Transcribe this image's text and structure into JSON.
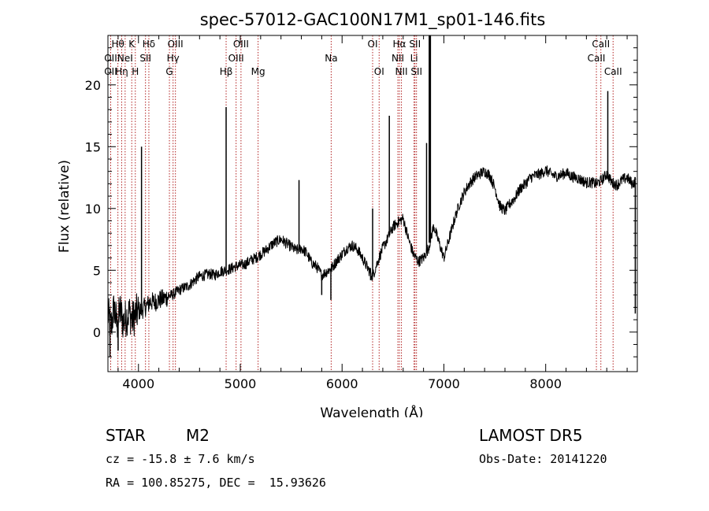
{
  "chart_data": {
    "type": "line",
    "title": "spec-57012-GAC100N17M1_sp01-146.fits",
    "xlabel": "Wavelength (Å)",
    "ylabel": "Flux (relative)",
    "xlim": [
      3700,
      8900
    ],
    "ylim": [
      -3.2,
      24
    ],
    "xticks": [
      4000,
      5000,
      6000,
      7000,
      8000
    ],
    "yticks": [
      0,
      5,
      10,
      15,
      20
    ],
    "grid": false,
    "series": [
      {
        "x": [
          3700,
          3730,
          3760,
          3790,
          3820,
          3850,
          3880,
          3910,
          3940,
          3970,
          4000,
          4030,
          4060,
          4090,
          4120,
          4150,
          4200,
          4250,
          4300,
          4350,
          4400,
          4450,
          4500,
          4550,
          4600,
          4650,
          4700,
          4750,
          4800,
          4850,
          4900,
          4950,
          5000,
          5050,
          5100,
          5150,
          5200,
          5250,
          5300,
          5350,
          5400,
          5450,
          5500,
          5550,
          5600,
          5650,
          5700,
          5750,
          5800,
          5850,
          5900,
          5950,
          6000,
          6050,
          6100,
          6150,
          6200,
          6250,
          6300,
          6350,
          6400,
          6450,
          6500,
          6550,
          6600,
          6650,
          6700,
          6750,
          6800,
          6850,
          6900,
          6950,
          7000,
          7050,
          7100,
          7150,
          7200,
          7250,
          7300,
          7350,
          7400,
          7450,
          7500,
          7550,
          7600,
          7650,
          7700,
          7750,
          7800,
          7850,
          7900,
          7950,
          8000,
          8050,
          8100,
          8150,
          8200,
          8250,
          8300,
          8350,
          8400,
          8450,
          8500,
          8550,
          8600,
          8650,
          8700,
          8750,
          8800,
          8850,
          8880
        ],
        "y": [
          1.5,
          0.3,
          2.0,
          0.5,
          1.8,
          0.8,
          1.2,
          1.6,
          1.0,
          1.4,
          1.7,
          1.8,
          2.0,
          2.2,
          2.5,
          2.4,
          2.6,
          2.7,
          2.9,
          3.1,
          3.4,
          3.6,
          3.8,
          4.2,
          4.5,
          4.6,
          4.7,
          4.6,
          4.9,
          5.0,
          5.1,
          5.3,
          5.4,
          5.5,
          5.8,
          6.0,
          6.3,
          6.6,
          7.0,
          7.3,
          7.5,
          7.2,
          6.9,
          6.6,
          6.8,
          6.4,
          5.6,
          5.3,
          4.6,
          4.9,
          5.2,
          5.8,
          6.3,
          6.8,
          7.0,
          6.7,
          6.0,
          5.2,
          4.5,
          5.7,
          6.8,
          7.6,
          8.5,
          8.9,
          9.2,
          7.6,
          6.3,
          5.7,
          6.0,
          6.8,
          8.6,
          7.3,
          6.0,
          7.5,
          9.0,
          10.3,
          11.3,
          12.0,
          12.5,
          12.8,
          13.0,
          12.7,
          11.7,
          10.2,
          9.8,
          10.4,
          10.9,
          11.6,
          12.0,
          12.5,
          12.7,
          12.8,
          13.1,
          12.8,
          12.6,
          12.7,
          12.9,
          12.6,
          12.5,
          12.3,
          12.1,
          12.1,
          12.0,
          12.3,
          12.8,
          12.1,
          11.9,
          12.3,
          12.5,
          12.0,
          12.2
        ]
      }
    ],
    "emission_spikes": [
      {
        "x": 4030,
        "y": 15.0
      },
      {
        "x": 4861,
        "y": 18.2
      },
      {
        "x": 5577,
        "y": 12.3
      },
      {
        "x": 6300,
        "y": 10.0
      },
      {
        "x": 6464,
        "y": 17.5
      },
      {
        "x": 6830,
        "y": 15.3
      },
      {
        "x": 6862,
        "y": 24.0
      },
      {
        "x": 8610,
        "y": 19.5
      },
      {
        "x": 8880,
        "y": 1.5
      }
    ],
    "absorption_dips": [
      {
        "x": 5890,
        "y": 2.6
      },
      {
        "x": 5800,
        "y": 3.0
      },
      {
        "x": 3720,
        "y": -2.0
      },
      {
        "x": 3800,
        "y": -1.5
      },
      {
        "x": 6280,
        "y": 4.2
      }
    ],
    "line_markers": [
      {
        "x": 3727,
        "label": "OII",
        "row": 1
      },
      {
        "x": 3727,
        "label": "OII",
        "row": 2
      },
      {
        "x": 3798,
        "label": "Hθ",
        "row": 0
      },
      {
        "x": 3835,
        "label": "Hη",
        "row": 2
      },
      {
        "x": 3869,
        "label": "NeI",
        "row": 1
      },
      {
        "x": 3934,
        "label": "K",
        "row": 0
      },
      {
        "x": 3969,
        "label": "H",
        "row": 2
      },
      {
        "x": 4069,
        "label": "SII",
        "row": 1
      },
      {
        "x": 4102,
        "label": "Hδ",
        "row": 0
      },
      {
        "x": 4304,
        "label": "G",
        "row": 2
      },
      {
        "x": 4340,
        "label": "Hγ",
        "row": 1
      },
      {
        "x": 4363,
        "label": "OIII",
        "row": 0
      },
      {
        "x": 4861,
        "label": "Hβ",
        "row": 2
      },
      {
        "x": 4959,
        "label": "OIII",
        "row": 1
      },
      {
        "x": 5007,
        "label": "OIII",
        "row": 0
      },
      {
        "x": 5175,
        "label": "Mg",
        "row": 2
      },
      {
        "x": 5893,
        "label": "Na",
        "row": 1
      },
      {
        "x": 6300,
        "label": "OI",
        "row": 0
      },
      {
        "x": 6364,
        "label": "OI",
        "row": 2
      },
      {
        "x": 6548,
        "label": "NII",
        "row": 1
      },
      {
        "x": 6563,
        "label": "Hα",
        "row": 0
      },
      {
        "x": 6583,
        "label": "NII",
        "row": 2
      },
      {
        "x": 6707,
        "label": "Li",
        "row": 1
      },
      {
        "x": 6716,
        "label": "SII",
        "row": 0
      },
      {
        "x": 6731,
        "label": "SII",
        "row": 2
      },
      {
        "x": 8498,
        "label": "CaII",
        "row": 1
      },
      {
        "x": 8542,
        "label": "CaII",
        "row": 0
      },
      {
        "x": 8662,
        "label": "CaII",
        "row": 2
      }
    ],
    "colors": {
      "spectrum": "#000000",
      "markers": "#b22222",
      "axes": "#000000"
    }
  },
  "info": {
    "object_class": "STAR",
    "subclass": "M2",
    "survey": "LAMOST DR5",
    "cz": "cz = -15.8 ± 7.6 km/s",
    "obs_date": "Obs-Date: 20141220",
    "coords": "RA = 100.85275, DEC =  15.93626"
  }
}
